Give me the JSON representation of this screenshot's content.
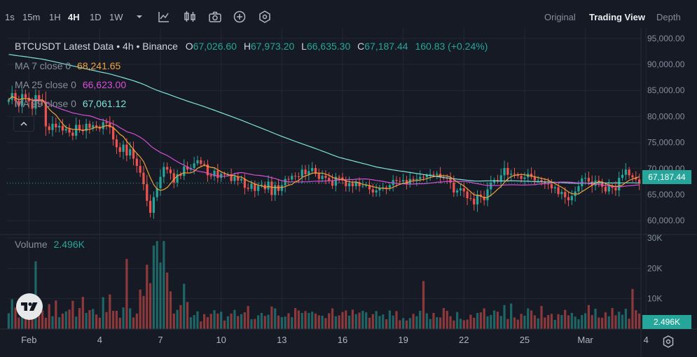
{
  "toolbar": {
    "intervals": [
      "1s",
      "15m",
      "1H",
      "4H",
      "1D",
      "1W"
    ],
    "active_interval": "4H",
    "views": [
      "Original",
      "Trading View",
      "Depth"
    ],
    "active_view": "Trading View"
  },
  "legend": {
    "title": "BTCUSDT Latest Data • 4h • Binance",
    "open_label": "O",
    "open": "67,026.60",
    "high_label": "H",
    "high": "67,973.20",
    "low_label": "L",
    "low": "66,635.30",
    "close_label": "C",
    "close": "67,187.44",
    "change": "160.83 (+0.24%)"
  },
  "ma": [
    {
      "label": "MA 7 close 0",
      "value": "68,241.65",
      "color": "#f0a33a"
    },
    {
      "label": "MA 25 close 0",
      "value": "66,623.00",
      "color": "#d64fd6"
    },
    {
      "label": "MA 99 close 0",
      "value": "67,061.12",
      "color": "#7fe3da"
    }
  ],
  "volume": {
    "label": "Volume",
    "value": "2.496K"
  },
  "price_axis": {
    "ticks": [
      "95,000.00",
      "90,000.00",
      "85,000.00",
      "80,000.00",
      "75,000.00",
      "70,000.00",
      "65,000.00",
      "60,000.00"
    ],
    "last_price_tag": "67,187.44"
  },
  "volume_axis": {
    "ticks": [
      "30K",
      "20K",
      "10K"
    ],
    "last_tag": "2.496K"
  },
  "time_axis": {
    "ticks": [
      "Feb",
      "4",
      "7",
      "10",
      "13",
      "16",
      "19",
      "22",
      "25",
      "Mar",
      "4"
    ]
  },
  "colors": {
    "up": "#26a69a",
    "down": "#ef5350",
    "grid": "#232734",
    "bg": "#161a25"
  },
  "chart_data": {
    "type": "candlestick",
    "price_range": [
      58000,
      97000
    ],
    "volume_range": [
      0,
      30000
    ],
    "closes": [
      83200,
      84500,
      83000,
      82100,
      84300,
      83600,
      82900,
      81500,
      84100,
      83100,
      82800,
      78100,
      77400,
      78600,
      77900,
      78200,
      77300,
      77600,
      76900,
      76300,
      78400,
      77500,
      77200,
      78600,
      77800,
      78300,
      78000,
      77600,
      78900,
      78700,
      77900,
      75600,
      74100,
      73200,
      74600,
      72500,
      73700,
      71900,
      70500,
      69200,
      67000,
      63800,
      61500,
      64500,
      66200,
      68400,
      70300,
      69800,
      69100,
      67300,
      68900,
      68600,
      70400,
      69800,
      70100,
      71000,
      71600,
      70900,
      70800,
      68700,
      68500,
      69600,
      68200,
      69000,
      68900,
      68900,
      67600,
      68500,
      67700,
      68000,
      66300,
      66100,
      67100,
      65700,
      66700,
      66900,
      66000,
      67500,
      64900,
      66800,
      65700,
      66800,
      68000,
      67900,
      68600,
      68500,
      68400,
      69800,
      68900,
      69500,
      70100,
      69000,
      68000,
      68600,
      68200,
      67600,
      66700,
      68400,
      68300,
      67700,
      66600,
      67200,
      66600,
      67400,
      66600,
      66700,
      66800,
      66000,
      65400,
      65800,
      66300,
      66400,
      66300,
      66800,
      67800,
      67600,
      67500,
      67800,
      67100,
      68000,
      67800,
      68000,
      68400,
      68300,
      68700,
      68900,
      68800,
      69000,
      68300,
      68200,
      68100,
      67300,
      65400,
      65800,
      66200,
      65600,
      64300,
      64200,
      63100,
      65000,
      64600,
      63900,
      66000,
      67300,
      67800,
      67500,
      68700,
      70100,
      68800,
      69000,
      68900,
      68600,
      68000,
      68300,
      69000,
      68400,
      67700,
      67800,
      67500,
      67100,
      67000,
      66200,
      66400,
      65100,
      65500,
      64500,
      63900,
      64700,
      65600,
      66600,
      68100,
      68200,
      67500,
      66700,
      67700,
      67400,
      66500,
      65600,
      66600,
      66300,
      65800,
      68200,
      68800,
      69800,
      68700,
      68300,
      67900,
      67187
    ],
    "volumes": [
      5200,
      9800,
      7100,
      3800,
      6400,
      4200,
      11200,
      5600,
      22300,
      7900,
      6100,
      3700,
      8200,
      4200,
      9400,
      3900,
      5100,
      5800,
      6400,
      9300,
      4100,
      6900,
      10600,
      5300,
      6200,
      6600,
      4800,
      3700,
      10500,
      5600,
      11400,
      6000,
      6000,
      3700,
      7100,
      23100,
      6800,
      3800,
      5100,
      13000,
      10900,
      21200,
      15100,
      27500,
      29000,
      21900,
      29000,
      18600,
      12400,
      5100,
      6300,
      7900,
      14900,
      8900,
      3900,
      4600,
      5800,
      2500,
      4900,
      3900,
      5000,
      6200,
      5100,
      5700,
      2800,
      4200,
      5100,
      6300,
      4300,
      4900,
      5500,
      7600,
      3200,
      3300,
      4500,
      5300,
      4300,
      4700,
      7400,
      6800,
      4400,
      3900,
      4100,
      5200,
      3900,
      6900,
      6100,
      5300,
      5900,
      5300,
      5700,
      5100,
      4500,
      4400,
      3600,
      5200,
      6800,
      4200,
      4500,
      5600,
      6100,
      4400,
      6400,
      4900,
      5400,
      6000,
      5500,
      3700,
      4900,
      5900,
      4300,
      4800,
      3200,
      6100,
      4400,
      5900,
      2900,
      3600,
      2800,
      3600,
      5000,
      4200,
      6000,
      15800,
      5200,
      3300,
      5300,
      3900,
      3800,
      6900,
      6000,
      4200,
      2800,
      5600,
      3400,
      2900,
      3100,
      4700,
      3700,
      5300,
      5500,
      6800,
      4200,
      4600,
      6100,
      5700,
      4300,
      7900,
      3300,
      8400,
      3800,
      3100,
      5000,
      4400,
      6800,
      6100,
      4500,
      3500,
      7600,
      3800,
      4600,
      5000,
      3000,
      4900,
      4600,
      6300,
      4500,
      5300,
      4100,
      3200,
      4600,
      5200,
      7900,
      4600,
      6700,
      3800,
      3700,
      5500,
      4200,
      6900,
      4500,
      5700,
      4700,
      6700,
      3400,
      13200,
      6200,
      5100,
      7400,
      3600,
      2496
    ]
  }
}
